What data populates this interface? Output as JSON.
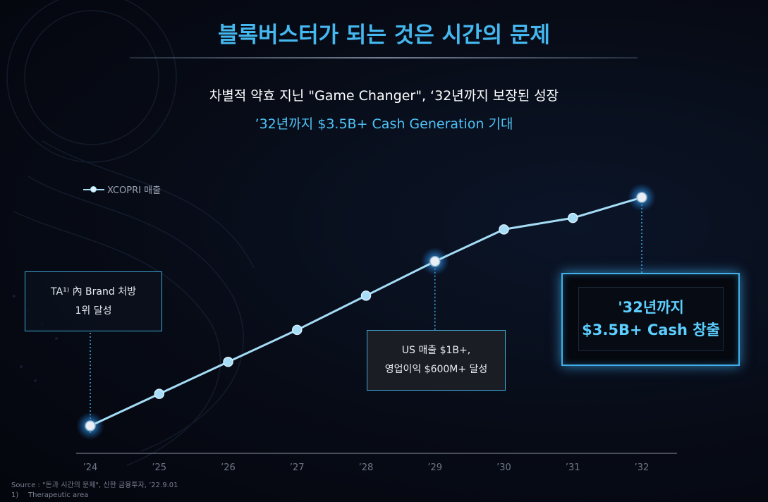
{
  "title": "블록버스터가 되는 것은 시간의 문제",
  "subtitle": "차별적 약효 지닌 \"Game Changer\", ‘32년까지 보장된 성장",
  "subtitle2": "’32년까지 $3.5B+ Cash Generation 기대",
  "legend": "XCOPRI 매출",
  "chart_data": {
    "type": "line",
    "categories": [
      "’24",
      "’25",
      "’26",
      "’27",
      "’28",
      "’29",
      "’30",
      "’31",
      "’32"
    ],
    "series": [
      {
        "name": "XCOPRI 매출",
        "values": [
          0.0,
          0.14,
          0.28,
          0.42,
          0.57,
          0.72,
          0.86,
          0.91,
          1.0
        ]
      }
    ],
    "highlighted_points": [
      "’24",
      "’29",
      "’32"
    ],
    "annotations": [
      {
        "at": "’24",
        "text": [
          "TA¹⁾ 內 Brand 처방",
          "1위 달성"
        ]
      },
      {
        "at": "’29",
        "text": [
          "US 매출 $1B+,",
          "영업이익 $600M+ 달성"
        ]
      },
      {
        "at": "’32",
        "text": [
          "'32년까지",
          "$3.5B+ Cash 창출"
        ]
      }
    ],
    "line_color": "#a5dcf6",
    "highlight_color": "#3fb0ea"
  },
  "source": "Source : \"돈과 시간의 문제\", 신한 금융투자, ’22.9.01",
  "footnote": {
    "number": "1)",
    "text": "Therapeutic area"
  }
}
